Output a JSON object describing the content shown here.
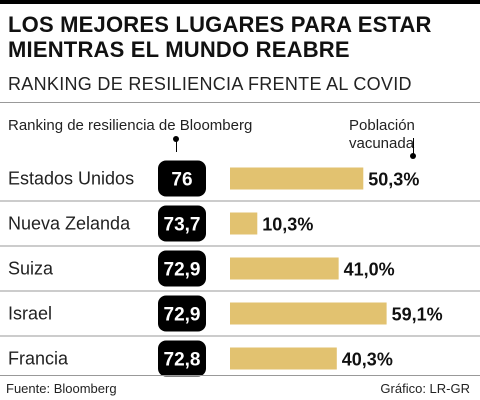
{
  "title": "LOS MEJORES LUGARES PARA ESTAR MIENTRAS EL MUNDO REABRE",
  "subtitle": "RANKING DE RESILIENCIA FRENTE AL COVID",
  "headers": {
    "ranking": "Ranking de resiliencia de Bloomberg",
    "vaccinated": "Población vacunada"
  },
  "footer": {
    "source": "Fuente: Bloomberg",
    "credit": "Gráfico: LR-GR"
  },
  "colors": {
    "bar": "#E2C270",
    "badge": "#000000",
    "badge_text": "#ffffff",
    "row_rule": "#999999"
  },
  "chart_data": {
    "type": "bar",
    "title": "LOS MEJORES LUGARES PARA ESTAR MIENTRAS EL MUNDO REABRE",
    "subtitle": "RANKING DE RESILIENCIA FRENTE AL COVID",
    "categories": [
      "Estados Unidos",
      "Nueva Zelanda",
      "Suiza",
      "Israel",
      "Francia"
    ],
    "series": [
      {
        "name": "Ranking de resiliencia de Bloomberg",
        "values": [
          76,
          73.7,
          72.9,
          72.9,
          72.8
        ],
        "labels": [
          "76",
          "73,7",
          "72,9",
          "72,9",
          "72,8"
        ]
      },
      {
        "name": "Población vacunada",
        "values": [
          50.3,
          10.3,
          41.0,
          59.1,
          40.3
        ],
        "labels": [
          "50,3%",
          "10,3%",
          "41,0%",
          "59,1%",
          "40,3%"
        ]
      }
    ],
    "xlim": [
      0,
      100
    ],
    "grid": false,
    "legend": "none"
  }
}
